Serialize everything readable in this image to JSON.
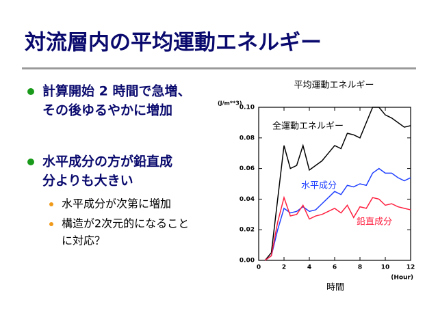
{
  "slide": {
    "title": "対流層内の平均運動エネルギー",
    "bullets": [
      {
        "lines": [
          "計算開始 2 時間で急増、",
          "その後ゆるやかに増加"
        ]
      },
      {
        "lines": [
          "水平成分の方が鉛直成",
          "分よりも大きい"
        ],
        "sub": [
          {
            "lines": [
              "水平成分が次第に増加"
            ]
          },
          {
            "lines": [
              "構造が2次元的になること",
              "に対応？"
            ]
          }
        ]
      }
    ]
  },
  "chart_data": {
    "type": "line",
    "title": "平均運動エネルギー",
    "y_unit": "(J/m**3)",
    "x_label": "時間",
    "x_unit": "(Hour)",
    "x": [
      0.5,
      1,
      1.5,
      2,
      2.5,
      3,
      3.5,
      4,
      4.5,
      5,
      5.5,
      6,
      6.5,
      7,
      7.5,
      8,
      8.5,
      9,
      9.5,
      10,
      10.5,
      11,
      11.5,
      12
    ],
    "series": [
      {
        "name": "全運動エネルギー",
        "color": "#000000",
        "values": [
          0,
          0.005,
          0.04,
          0.075,
          0.06,
          0.062,
          0.075,
          0.059,
          0.062,
          0.065,
          0.07,
          0.075,
          0.073,
          0.083,
          0.082,
          0.08,
          0.09,
          0.1,
          0.1,
          0.095,
          0.093,
          0.09,
          0.087,
          0.088
        ]
      },
      {
        "name": "水平成分",
        "color": "#1f3fff",
        "values": [
          0,
          0.003,
          0.02,
          0.034,
          0.031,
          0.032,
          0.035,
          0.032,
          0.033,
          0.037,
          0.041,
          0.045,
          0.043,
          0.049,
          0.048,
          0.05,
          0.049,
          0.057,
          0.06,
          0.057,
          0.057,
          0.054,
          0.052,
          0.054
        ]
      },
      {
        "name": "鉛直成分",
        "color": "#ff1f3f",
        "values": [
          0,
          0.003,
          0.025,
          0.041,
          0.029,
          0.03,
          0.036,
          0.027,
          0.029,
          0.03,
          0.032,
          0.034,
          0.031,
          0.036,
          0.028,
          0.035,
          0.034,
          0.041,
          0.04,
          0.036,
          0.037,
          0.035,
          0.034,
          0.033
        ]
      }
    ],
    "xlim": [
      0,
      12
    ],
    "xticks": [
      0,
      2,
      4,
      6,
      8,
      10,
      12
    ],
    "ylim": [
      0,
      0.1
    ],
    "yticks": [
      {
        "value": 0,
        "label": "0.00"
      },
      {
        "value": 0.02,
        "label": "0.02"
      },
      {
        "value": 0.04,
        "label": "0.04"
      },
      {
        "value": 0.06,
        "label": "0.06"
      },
      {
        "value": 0.08,
        "label": "0.08"
      },
      {
        "value": 0.1,
        "label": "0.10"
      }
    ]
  }
}
